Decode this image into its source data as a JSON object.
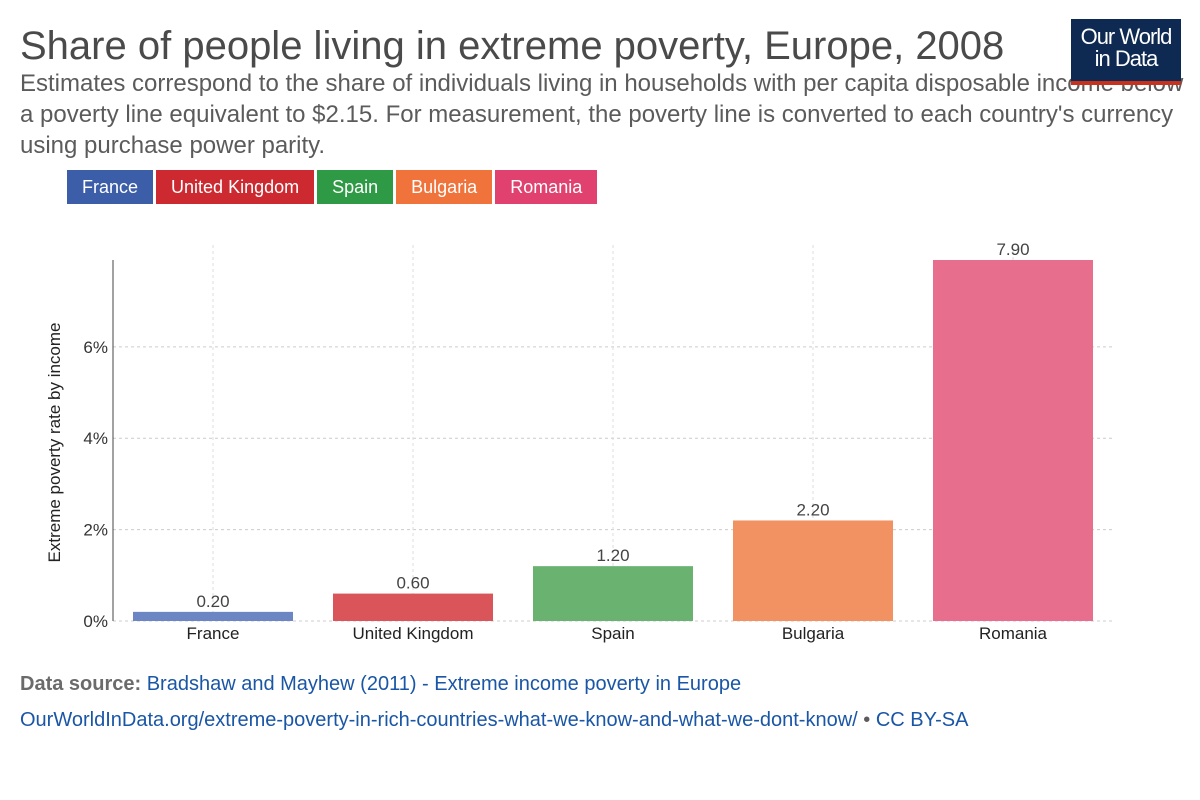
{
  "header": {
    "title": "Share of people living in extreme poverty, Europe, 2008",
    "subtitle_lines": [
      "Estimates correspond to the share of individuals living in households with per capita disposable income below",
      "a poverty line equivalent to $2.15. For measurement, the poverty line is converted to each country's currency",
      "using purchase power parity."
    ],
    "logo_line1": "Our World",
    "logo_line2": "in Data"
  },
  "colors": {
    "logo_bg": "#0e2a52",
    "logo_accent": "#c8321d",
    "link": "#1a56a6"
  },
  "legend": [
    {
      "label": "France",
      "color": "#3c5da8"
    },
    {
      "label": "United Kingdom",
      "color": "#cc2a30"
    },
    {
      "label": "Spain",
      "color": "#2e9a45"
    },
    {
      "label": "Bulgaria",
      "color": "#f0733b"
    },
    {
      "label": "Romania",
      "color": "#e0416e"
    }
  ],
  "chart_data": {
    "type": "bar",
    "title": "Share of people living in extreme poverty, Europe, 2008",
    "xlabel": "",
    "ylabel": "Extreme poverty rate by income",
    "categories": [
      "France",
      "United Kingdom",
      "Spain",
      "Bulgaria",
      "Romania"
    ],
    "values": [
      0.2,
      0.6,
      1.2,
      2.2,
      7.9
    ],
    "value_labels": [
      "0.20",
      "0.60",
      "1.20",
      "2.20",
      "7.90"
    ],
    "colors": [
      "#6b86c2",
      "#d95559",
      "#69b270",
      "#f29263",
      "#e76e8c"
    ],
    "ylim": [
      0,
      7.9
    ],
    "yticks": [
      0,
      2,
      4,
      6
    ],
    "ytick_labels": [
      "0%",
      "2%",
      "4%",
      "6%"
    ],
    "grid": true,
    "legend_position": "top-left"
  },
  "footer": {
    "source_label": "Data source:",
    "source_text": "Bradshaw and Mayhew (2011) - Extreme income poverty in Europe",
    "url": "OurWorldInData.org/extreme-poverty-in-rich-countries-what-we-know-and-what-we-dont-know/",
    "separator": "•",
    "license": "CC BY-SA"
  }
}
